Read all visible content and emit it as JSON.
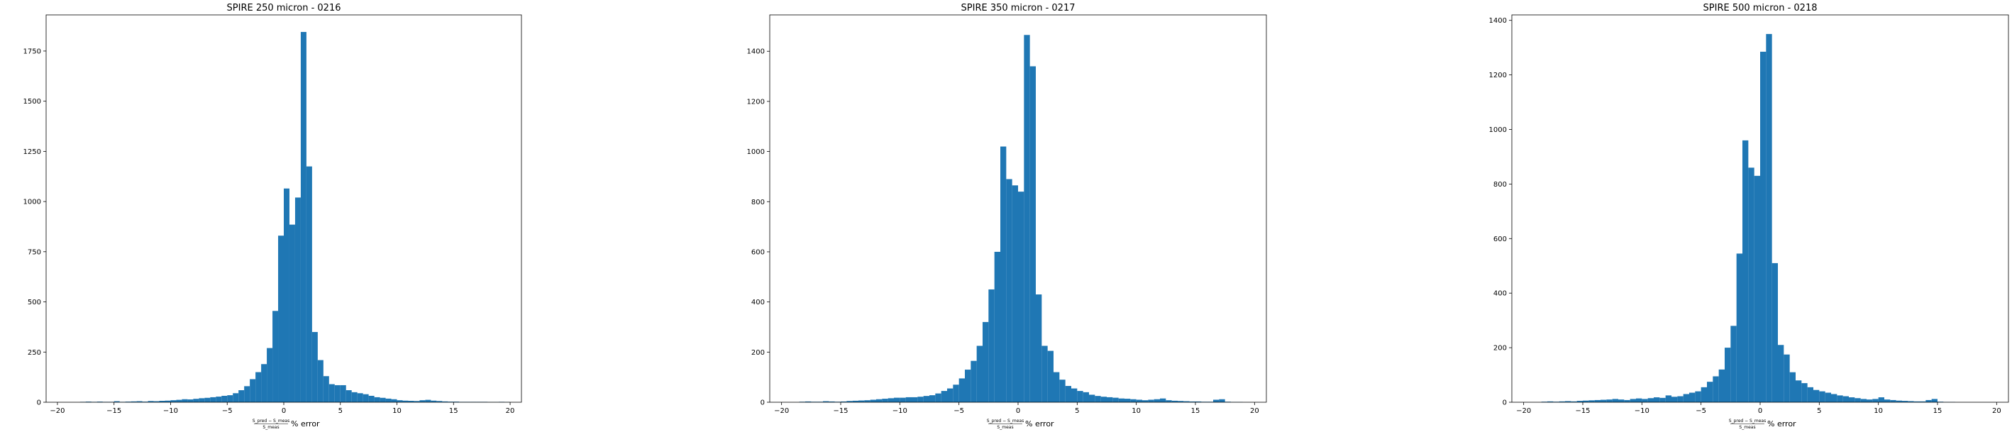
{
  "chart_data": [
    {
      "type": "bar",
      "title": "SPIRE 250 micron - 0216",
      "xlabel_numerator": "S_pred − S_meas",
      "xlabel_denominator": "S_meas",
      "xlabel_suffix": "% error",
      "xlim": [
        -21,
        21
      ],
      "ylim": [
        0,
        1930
      ],
      "xticks": [
        -20,
        -15,
        -10,
        -5,
        0,
        5,
        10,
        15,
        20
      ],
      "yticks": [
        0,
        250,
        500,
        750,
        1000,
        1250,
        1500,
        1750
      ],
      "color": "#1f77b4",
      "bin_start": -20,
      "bin_width": 0.5,
      "values": [
        0,
        0,
        0,
        0,
        2,
        3,
        2,
        3,
        2,
        2,
        5,
        2,
        3,
        4,
        5,
        3,
        6,
        5,
        7,
        8,
        10,
        12,
        15,
        14,
        17,
        20,
        22,
        25,
        28,
        32,
        35,
        45,
        60,
        80,
        115,
        150,
        190,
        270,
        455,
        830,
        1065,
        885,
        1020,
        1845,
        1175,
        350,
        210,
        130,
        90,
        85,
        85,
        60,
        50,
        45,
        40,
        32,
        25,
        22,
        18,
        15,
        10,
        8,
        7,
        6,
        10,
        12,
        8,
        6,
        4,
        3,
        3,
        2,
        2,
        2,
        2,
        2,
        1,
        1,
        2,
        1
      ]
    },
    {
      "type": "bar",
      "title": "SPIRE 350 micron - 0217",
      "xlabel_numerator": "S_pred − S_meas",
      "xlabel_denominator": "S_meas",
      "xlabel_suffix": "% error",
      "xlim": [
        -21,
        21
      ],
      "ylim": [
        0,
        1545
      ],
      "xticks": [
        -20,
        -15,
        -10,
        -5,
        0,
        5,
        10,
        15,
        20
      ],
      "yticks": [
        0,
        200,
        400,
        600,
        800,
        1000,
        1200,
        1400
      ],
      "color": "#1f77b4",
      "bin_start": -20,
      "bin_width": 0.5,
      "values": [
        0,
        0,
        0,
        2,
        3,
        2,
        2,
        4,
        3,
        2,
        3,
        5,
        6,
        7,
        8,
        10,
        12,
        14,
        16,
        18,
        18,
        20,
        20,
        22,
        25,
        28,
        35,
        45,
        55,
        70,
        95,
        130,
        165,
        225,
        320,
        450,
        600,
        1020,
        890,
        865,
        840,
        1465,
        1340,
        430,
        225,
        205,
        120,
        90,
        65,
        55,
        45,
        40,
        30,
        25,
        22,
        20,
        18,
        15,
        14,
        12,
        10,
        8,
        10,
        12,
        15,
        8,
        6,
        5,
        4,
        3,
        3,
        2,
        2,
        10,
        12,
        2,
        1,
        1,
        0,
        0
      ]
    },
    {
      "type": "bar",
      "title": "SPIRE 500 micron - 0218",
      "xlabel_numerator": "S_pred − S_meas",
      "xlabel_denominator": "S_meas",
      "xlabel_suffix": "% error",
      "xlim": [
        -21,
        21
      ],
      "ylim": [
        0,
        1420
      ],
      "xticks": [
        -20,
        -15,
        -10,
        -5,
        0,
        5,
        10,
        15,
        20
      ],
      "yticks": [
        0,
        200,
        400,
        600,
        800,
        1000,
        1200,
        1400
      ],
      "color": "#1f77b4",
      "bin_start": -20,
      "bin_width": 0.5,
      "values": [
        0,
        0,
        0,
        2,
        3,
        2,
        3,
        4,
        3,
        5,
        6,
        7,
        8,
        9,
        10,
        12,
        10,
        8,
        12,
        14,
        12,
        15,
        18,
        16,
        25,
        20,
        22,
        30,
        35,
        40,
        55,
        75,
        95,
        120,
        200,
        280,
        545,
        960,
        860,
        830,
        1285,
        1350,
        510,
        210,
        175,
        110,
        80,
        70,
        55,
        45,
        40,
        35,
        30,
        25,
        22,
        18,
        15,
        12,
        10,
        12,
        18,
        10,
        8,
        6,
        5,
        4,
        3,
        3,
        8,
        12,
        2,
        1,
        1,
        0,
        0,
        0,
        0,
        0,
        0,
        0
      ]
    }
  ]
}
